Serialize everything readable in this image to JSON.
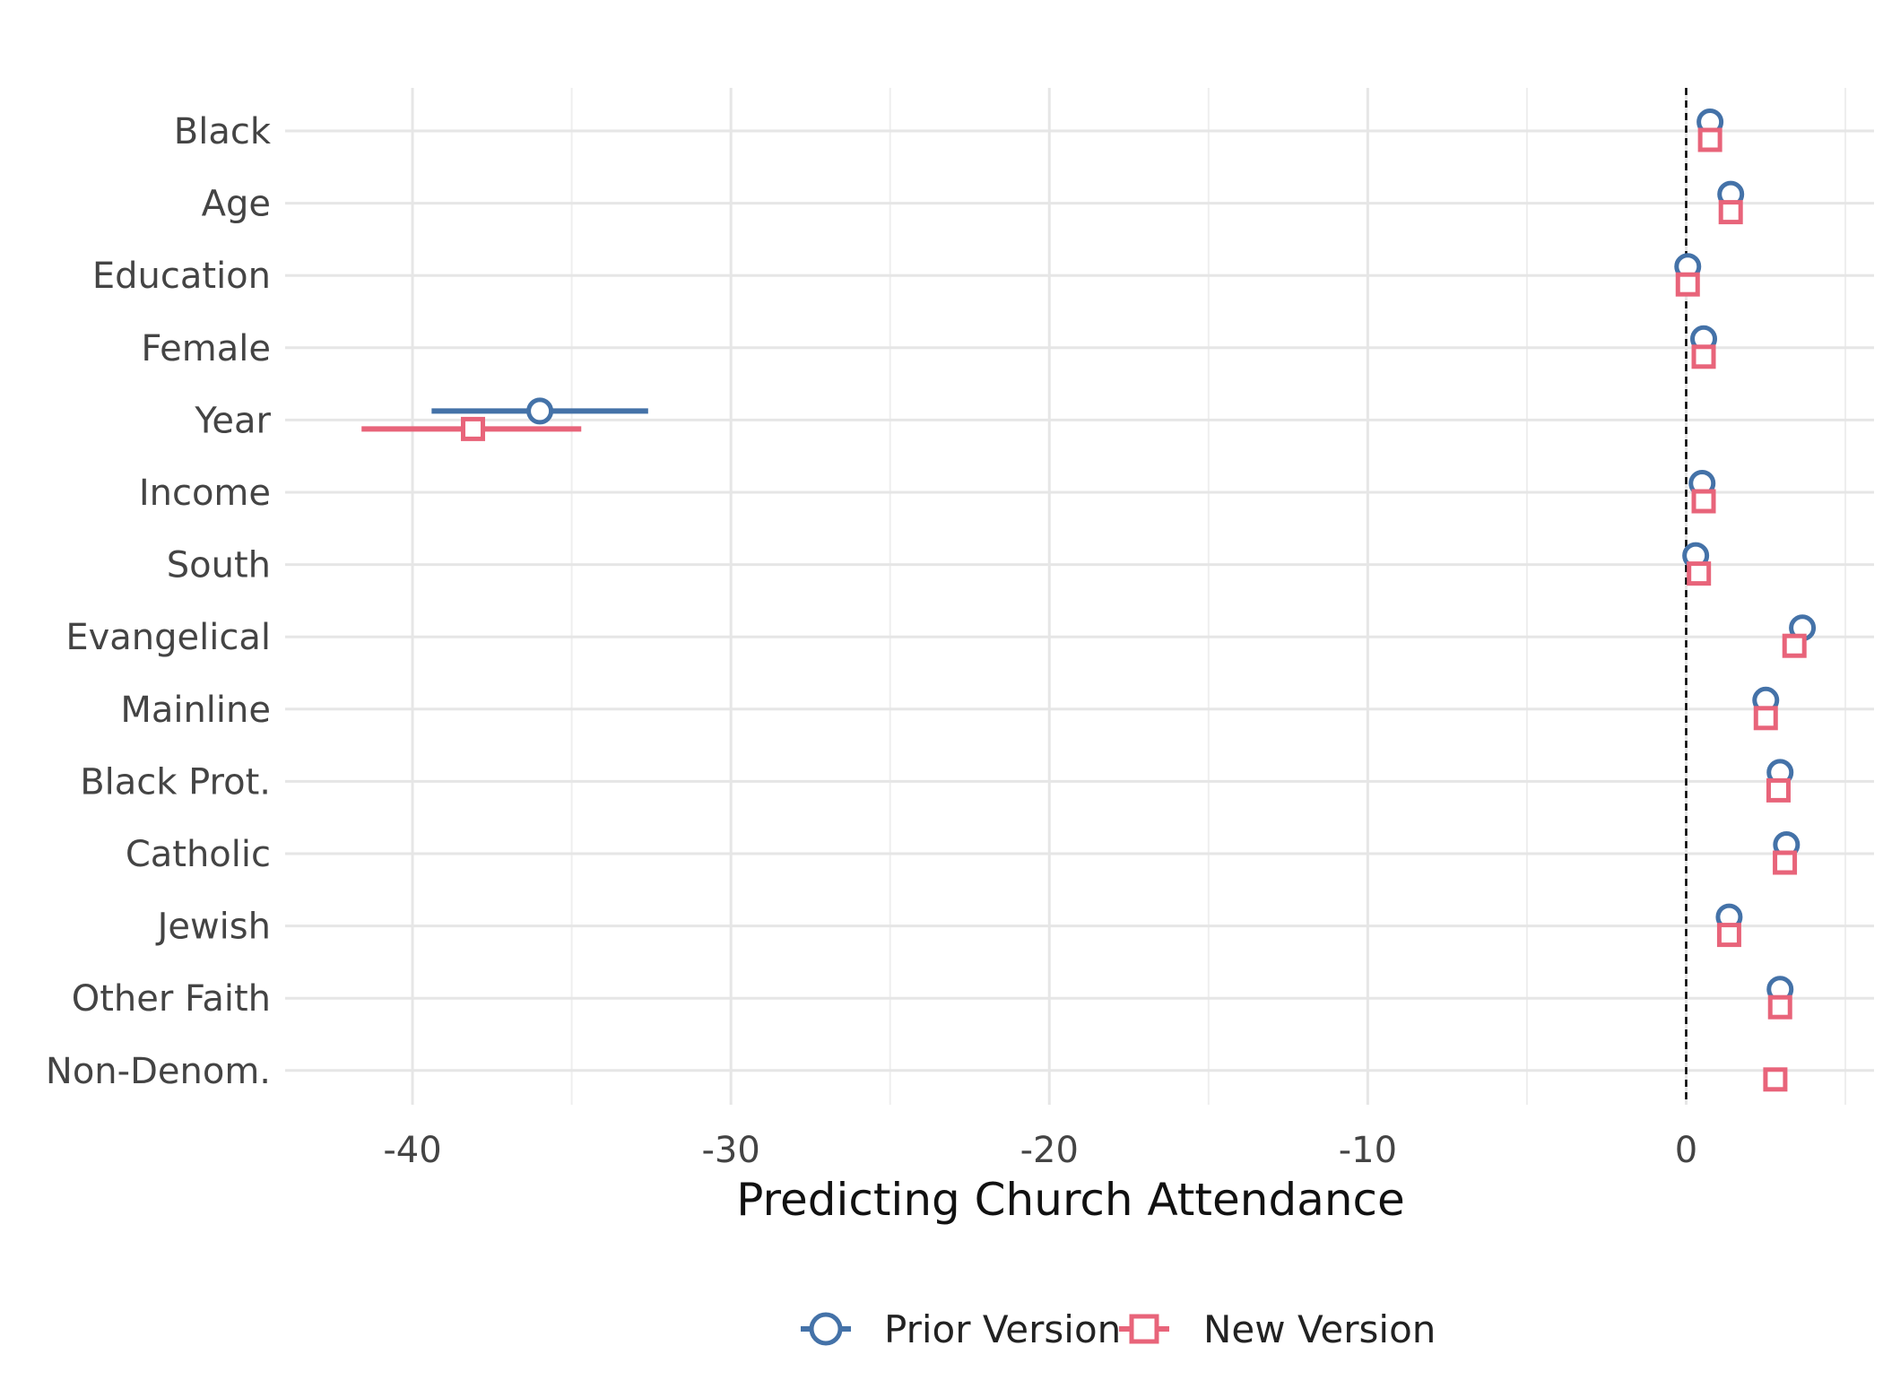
{
  "chart_data": {
    "type": "coefficient-plot",
    "xlabel": "Predicting Church Attendance",
    "ylabel": "",
    "xlim": [
      -44,
      5.9
    ],
    "x_ticks": [
      -40,
      -30,
      -20,
      -10,
      0
    ],
    "x_tick_labels": [
      "-40",
      "-30",
      "-20",
      "-10",
      "0"
    ],
    "reference_line": 0,
    "grid": true,
    "legend_position": "bottom",
    "categories": [
      "Black",
      "Age",
      "Education",
      "Female",
      "Year",
      "Income",
      "South",
      "Evangelical",
      "Mainline",
      "Black Prot.",
      "Catholic",
      "Jewish",
      "Other Faith",
      "Non-Denom."
    ],
    "series": [
      {
        "name": "Prior Version",
        "color": "#4472a8",
        "marker": "circle",
        "values": [
          0.75,
          1.4,
          0.05,
          0.55,
          -36.0,
          0.5,
          0.3,
          3.65,
          2.5,
          2.95,
          3.15,
          1.35,
          2.95,
          null
        ],
        "ci_low": [
          null,
          null,
          null,
          null,
          -39.4,
          null,
          null,
          null,
          null,
          null,
          null,
          null,
          null,
          null
        ],
        "ci_high": [
          null,
          null,
          null,
          null,
          -32.6,
          null,
          null,
          null,
          null,
          null,
          null,
          null,
          null,
          null
        ]
      },
      {
        "name": "New Version",
        "color": "#e8647a",
        "marker": "square",
        "values": [
          0.75,
          1.4,
          0.05,
          0.55,
          -38.1,
          0.55,
          0.4,
          3.4,
          2.5,
          2.9,
          3.1,
          1.35,
          2.95,
          2.8
        ],
        "ci_low": [
          null,
          null,
          null,
          null,
          -41.6,
          null,
          null,
          null,
          null,
          null,
          null,
          null,
          null,
          null
        ],
        "ci_high": [
          null,
          null,
          null,
          null,
          -34.7,
          null,
          null,
          null,
          null,
          null,
          null,
          null,
          null,
          null
        ]
      }
    ]
  }
}
